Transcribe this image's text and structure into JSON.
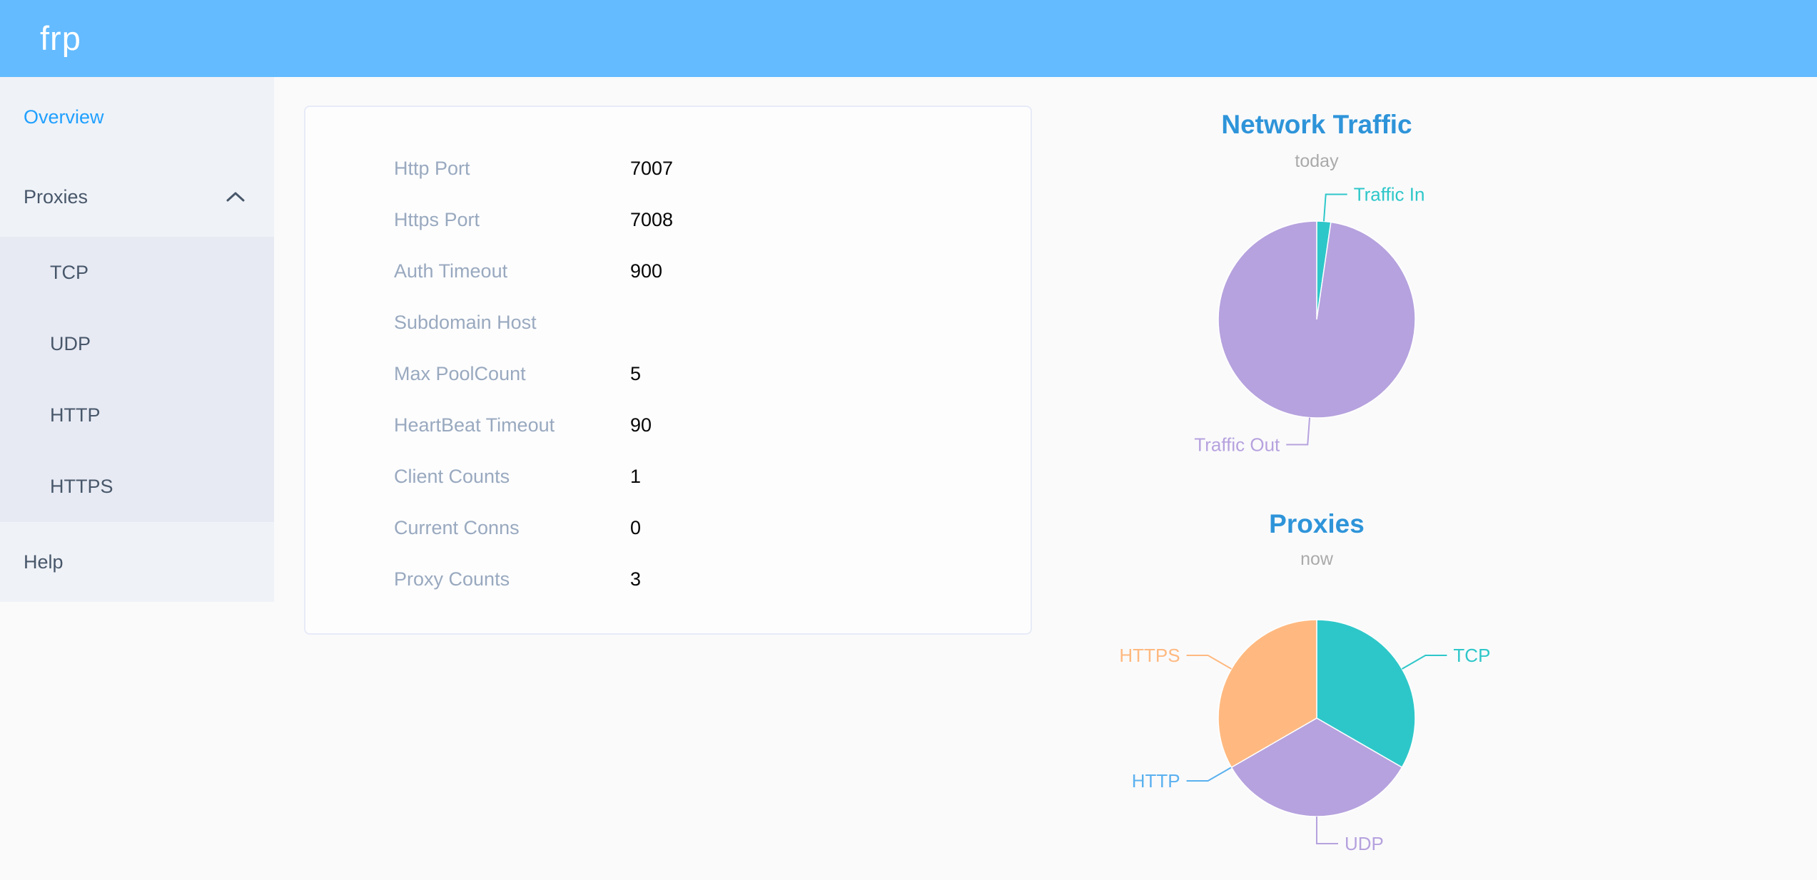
{
  "header": {
    "logo": "frp"
  },
  "sidebar": {
    "items": [
      {
        "label": "Overview",
        "active": true
      },
      {
        "label": "Proxies",
        "expanded": true
      },
      {
        "label": "Help"
      }
    ],
    "submenu_items": [
      {
        "label": "TCP"
      },
      {
        "label": "UDP"
      },
      {
        "label": "HTTP"
      },
      {
        "label": "HTTPS"
      }
    ]
  },
  "server_info": {
    "rows": [
      {
        "label": "Http Port",
        "value": "7007"
      },
      {
        "label": "Https Port",
        "value": "7008"
      },
      {
        "label": "Auth Timeout",
        "value": "900"
      },
      {
        "label": "Subdomain Host",
        "value": ""
      },
      {
        "label": "Max PoolCount",
        "value": "5"
      },
      {
        "label": "HeartBeat Timeout",
        "value": "90"
      },
      {
        "label": "Client Counts",
        "value": "1"
      },
      {
        "label": "Current Conns",
        "value": "0"
      },
      {
        "label": "Proxy Counts",
        "value": "3"
      }
    ]
  },
  "chart_data": [
    {
      "type": "pie",
      "title": "Network Traffic",
      "subtitle": "today",
      "labels": [
        "Traffic In",
        "Traffic Out"
      ],
      "values": [
        2.3,
        97.7
      ],
      "colors": [
        "#2ec7c9",
        "#b6a2de"
      ],
      "legend_position": "none",
      "label_style": "outside-with-leader-lines"
    },
    {
      "type": "pie",
      "title": "Proxies",
      "subtitle": "now",
      "labels": [
        "TCP",
        "UDP",
        "HTTP",
        "HTTPS"
      ],
      "values": [
        1,
        1,
        0,
        1
      ],
      "colors": [
        "#2ec7c9",
        "#b6a2de",
        "#5ab1ef",
        "#ffb980"
      ],
      "legend_position": "none",
      "label_style": "outside-with-leader-lines"
    }
  ],
  "colors": {
    "header_bg": "#64bbff",
    "sidebar_bg": "#eff2f7",
    "submenu_bg": "#e7eaf3",
    "menu_text": "#48576a",
    "menu_active": "#20a0ff",
    "info_label": "#99a9bf",
    "chart_title": "#2e94d9"
  }
}
